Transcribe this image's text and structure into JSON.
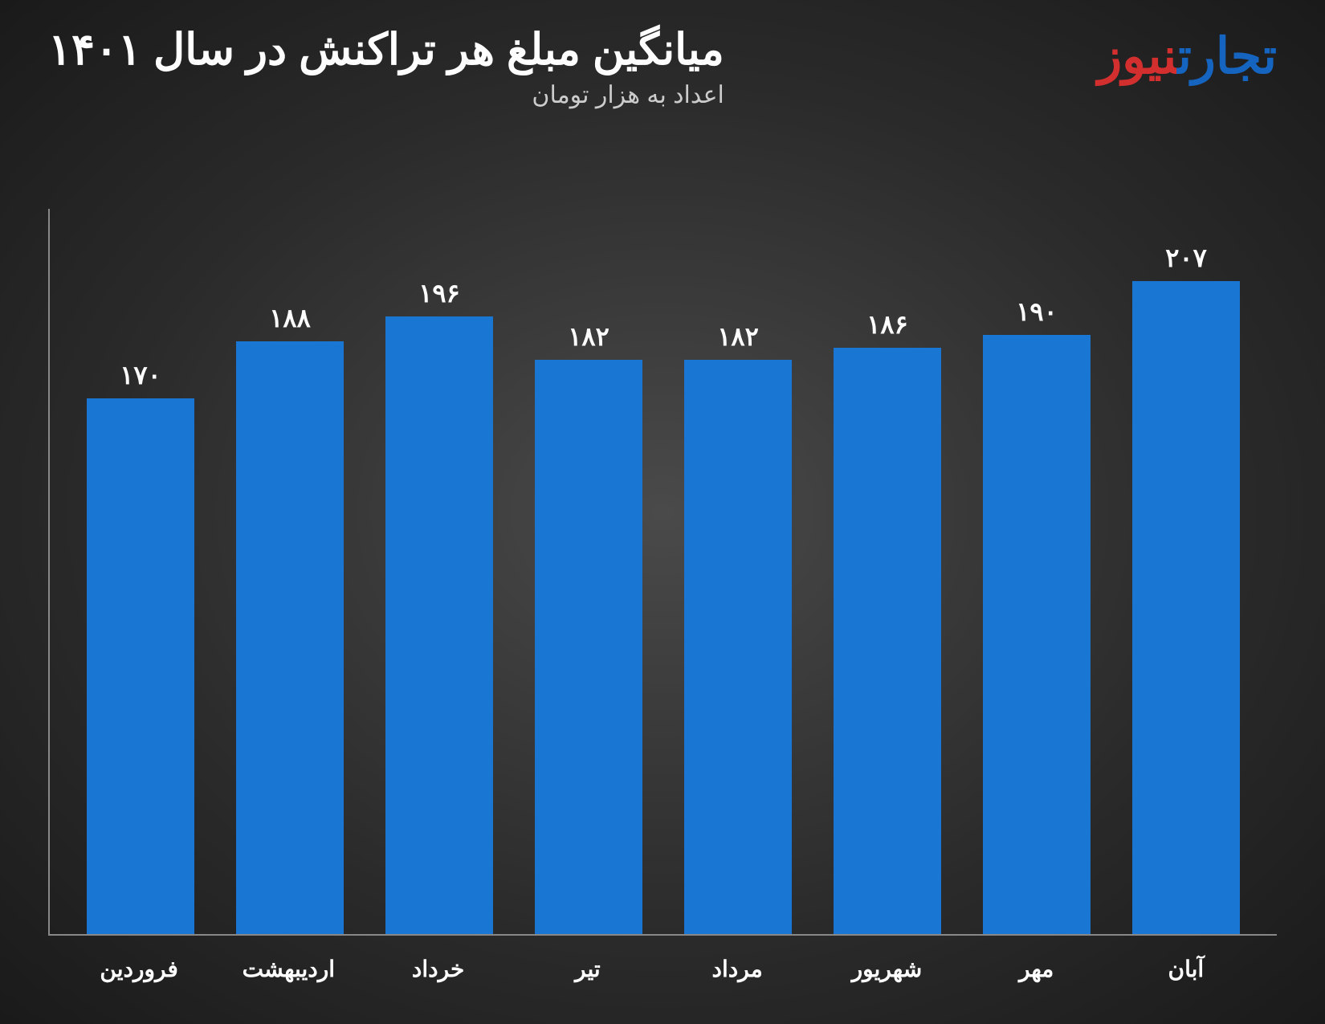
{
  "chart": {
    "type": "bar",
    "title": "میانگین مبلغ هر تراکنش در سال ۱۴۰۱",
    "subtitle": "اعداد به هزار تومان",
    "title_color": "#ffffff",
    "title_fontsize": 54,
    "subtitle_color": "#cccccc",
    "subtitle_fontsize": 30,
    "background": "radial-gradient(#4a4a4a, #1a1a1a)",
    "axis_color": "#888888",
    "bar_color": "#1976d2",
    "value_label_color": "#ffffff",
    "value_label_fontsize": 32,
    "x_label_color": "#ffffff",
    "x_label_fontsize": 28,
    "ylim": [
      0,
      230
    ],
    "bar_width_ratio": 0.72,
    "categories": [
      "فروردین",
      "اردیبهشت",
      "خرداد",
      "تیر",
      "مرداد",
      "شهریور",
      "مهر",
      "آبان"
    ],
    "values": [
      170,
      188,
      196,
      182,
      182,
      186,
      190,
      207
    ],
    "value_labels": [
      "۱۷۰",
      "۱۸۸",
      "۱۹۶",
      "۱۸۲",
      "۱۸۲",
      "۱۸۶",
      "۱۹۰",
      "۲۰۷"
    ]
  },
  "logo": {
    "part1_text": "تجارت",
    "part1_color": "#1565c0",
    "part2_text": "نیوز",
    "part2_color": "#d32f2f",
    "fontsize": 62
  }
}
